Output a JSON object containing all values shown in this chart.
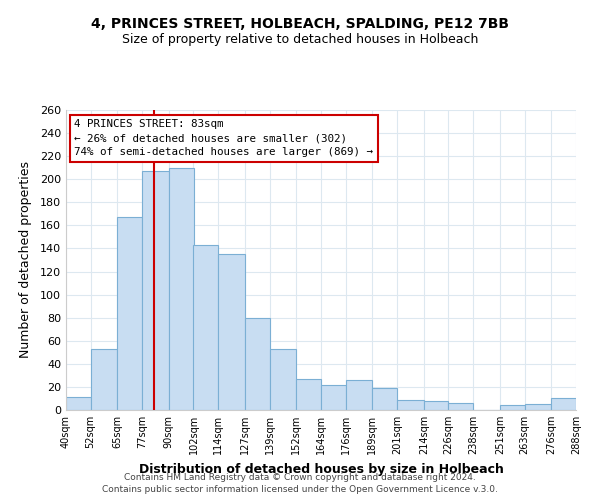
{
  "title": "4, PRINCES STREET, HOLBEACH, SPALDING, PE12 7BB",
  "subtitle": "Size of property relative to detached houses in Holbeach",
  "xlabel": "Distribution of detached houses by size in Holbeach",
  "ylabel": "Number of detached properties",
  "bar_labels": [
    "40sqm",
    "52sqm",
    "65sqm",
    "77sqm",
    "90sqm",
    "102sqm",
    "114sqm",
    "127sqm",
    "139sqm",
    "152sqm",
    "164sqm",
    "176sqm",
    "189sqm",
    "201sqm",
    "214sqm",
    "226sqm",
    "238sqm",
    "251sqm",
    "263sqm",
    "276sqm",
    "288sqm"
  ],
  "sqm_values": [
    40,
    52,
    65,
    77,
    90,
    102,
    114,
    127,
    139,
    152,
    164,
    176,
    189,
    201,
    214,
    226,
    238,
    251,
    263,
    276,
    288
  ],
  "bar_heights": [
    11,
    53,
    167,
    207,
    210,
    143,
    135,
    80,
    53,
    27,
    22,
    26,
    19,
    9,
    8,
    6,
    0,
    4,
    5,
    10
  ],
  "bar_color": "#c8ddf2",
  "bar_edge_color": "#7bafd4",
  "property_line_x": 83,
  "property_line_label": "4 PRINCES STREET: 83sqm",
  "annotation_line1": "← 26% of detached houses are smaller (302)",
  "annotation_line2": "74% of semi-detached houses are larger (869) →",
  "annotation_box_color": "#ffffff",
  "annotation_box_edge": "#cc0000",
  "line_color": "#cc0000",
  "ylim": [
    0,
    260
  ],
  "yticks": [
    0,
    20,
    40,
    60,
    80,
    100,
    120,
    140,
    160,
    180,
    200,
    220,
    240,
    260
  ],
  "footer1": "Contains HM Land Registry data © Crown copyright and database right 2024.",
  "footer2": "Contains public sector information licensed under the Open Government Licence v.3.0.",
  "background_color": "#ffffff",
  "grid_color": "#dde8f0"
}
